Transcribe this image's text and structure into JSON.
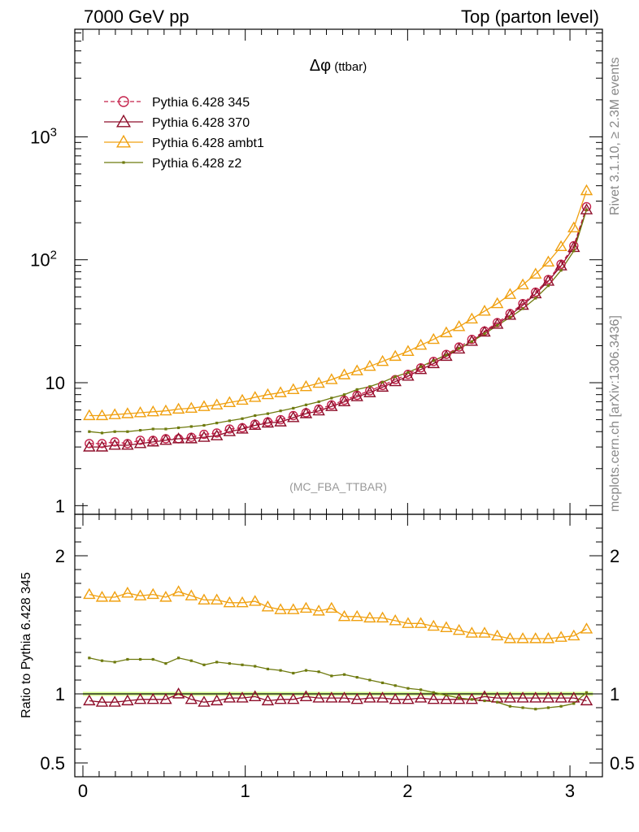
{
  "header": {
    "left": "7000 GeV pp",
    "right": "Top (parton level)"
  },
  "side_labels": {
    "rivet": "Rivet 3.1.10, ≥ 2.3M events",
    "mcplots": "mcplots.cern.ch [arXiv:1306.3436]"
  },
  "chart_data": {
    "type": "line",
    "title": "Δφ (ttbar)",
    "title_symbol": "Δφ",
    "title_suffix": " (ttbar)",
    "analysis_label": "(MC_FBA_TTBAR)",
    "xlim": [
      -0.05,
      3.2
    ],
    "upper": {
      "ylabel": "",
      "yscale": "log",
      "ylim": [
        0.85,
        7500
      ],
      "yticks": [
        {
          "value": 1,
          "label": "1"
        },
        {
          "value": 10,
          "label": "10"
        },
        {
          "value": 100,
          "label": "10",
          "exp": "2"
        },
        {
          "value": 1000,
          "label": "10",
          "exp": "3"
        }
      ]
    },
    "lower": {
      "ylabel": "Ratio to Pythia 6.428 345",
      "ylim": [
        0.4,
        2.3
      ],
      "yticks": [
        {
          "value": 0.5,
          "label": "0.5"
        },
        {
          "value": 1,
          "label": "1"
        },
        {
          "value": 2,
          "label": "2"
        }
      ]
    },
    "xticks": [
      {
        "value": 0,
        "label": "0"
      },
      {
        "value": 1,
        "label": "1"
      },
      {
        "value": 2,
        "label": "2"
      },
      {
        "value": 3,
        "label": "3"
      }
    ],
    "x": [
      0.0393,
      0.1178,
      0.1963,
      0.2749,
      0.3534,
      0.432,
      0.5105,
      0.589,
      0.6676,
      0.7461,
      0.8247,
      0.9032,
      0.9817,
      1.0603,
      1.1388,
      1.2174,
      1.2959,
      1.3744,
      1.453,
      1.5315,
      1.6101,
      1.6886,
      1.7671,
      1.8457,
      1.9242,
      2.0028,
      2.0813,
      2.1598,
      2.2384,
      2.3169,
      2.3955,
      2.474,
      2.5525,
      2.6311,
      2.7096,
      2.7882,
      2.8667,
      2.9452,
      3.0238,
      3.1023
    ],
    "legend": [
      {
        "name": "Pythia 6.428 345",
        "color": "#c4204a",
        "marker": "circle",
        "dashed": true
      },
      {
        "name": "Pythia 6.428 370",
        "color": "#8e0e2a",
        "marker": "triangle",
        "dashed": false
      },
      {
        "name": "Pythia 6.428 ambt1",
        "color": "#f0a010",
        "marker": "triangle",
        "dashed": false
      },
      {
        "name": "Pythia 6.428 z2",
        "color": "#6e7a0e",
        "marker": "dot",
        "dashed": false
      }
    ],
    "series": [
      {
        "name": "Pythia 6.428 345",
        "values": [
          3.2,
          3.2,
          3.3,
          3.2,
          3.4,
          3.4,
          3.5,
          3.5,
          3.6,
          3.8,
          3.9,
          4.2,
          4.3,
          4.6,
          4.8,
          5.0,
          5.4,
          5.7,
          6.1,
          6.6,
          7.2,
          7.9,
          8.6,
          9.5,
          10.6,
          11.7,
          13.2,
          14.9,
          17.0,
          19.5,
          22.5,
          26.3,
          30.8,
          36.5,
          44.0,
          54.5,
          69.0,
          92.0,
          130.0,
          270.0
        ]
      },
      {
        "name": "Pythia 6.428 370",
        "values": [
          3.0,
          3.0,
          3.1,
          3.1,
          3.2,
          3.3,
          3.4,
          3.5,
          3.5,
          3.6,
          3.7,
          4.0,
          4.2,
          4.5,
          4.7,
          4.8,
          5.2,
          5.6,
          5.9,
          6.4,
          7.0,
          7.7,
          8.3,
          9.2,
          10.2,
          11.3,
          12.8,
          14.3,
          16.4,
          18.8,
          21.7,
          25.8,
          29.9,
          35.4,
          42.7,
          52.9,
          67.0,
          89.2,
          126.0,
          255.0
        ]
      },
      {
        "name": "Pythia 6.428 ambt1",
        "values": [
          5.4,
          5.4,
          5.5,
          5.6,
          5.7,
          5.8,
          5.9,
          6.1,
          6.2,
          6.4,
          6.6,
          6.9,
          7.2,
          7.6,
          8.0,
          8.3,
          8.8,
          9.3,
          9.9,
          10.6,
          11.6,
          12.5,
          13.6,
          14.9,
          16.4,
          18.0,
          20.2,
          22.5,
          25.5,
          28.6,
          33.0,
          38.2,
          44.0,
          52.3,
          62.5,
          76.5,
          96.0,
          128.0,
          182.0,
          365.0
        ]
      },
      {
        "name": "Pythia 6.428 z2",
        "values": [
          4.0,
          3.9,
          4.0,
          4.0,
          4.1,
          4.2,
          4.2,
          4.3,
          4.4,
          4.5,
          4.7,
          4.9,
          5.1,
          5.4,
          5.6,
          5.9,
          6.2,
          6.6,
          7.0,
          7.5,
          8.0,
          8.8,
          9.3,
          10.1,
          11.2,
          12.1,
          13.5,
          15.1,
          16.8,
          19.0,
          21.6,
          25.0,
          29.2,
          34.0,
          40.0,
          48.7,
          61.5,
          82.0,
          118.0,
          255.0
        ]
      }
    ],
    "ratio_series": [
      {
        "name": "Pythia 6.428 345",
        "values": [
          1.0,
          1.0,
          1.0,
          1.0,
          1.0,
          1.0,
          1.0,
          1.0,
          1.0,
          1.0,
          1.0,
          1.0,
          1.0,
          1.0,
          1.0,
          1.0,
          1.0,
          1.0,
          1.0,
          1.0,
          1.0,
          1.0,
          1.0,
          1.0,
          1.0,
          1.0,
          1.0,
          1.0,
          1.0,
          1.0,
          1.0,
          1.0,
          1.0,
          1.0,
          1.0,
          1.0,
          1.0,
          1.0,
          1.0,
          1.0
        ]
      },
      {
        "name": "Pythia 6.428 370",
        "values": [
          0.95,
          0.94,
          0.94,
          0.95,
          0.96,
          0.96,
          0.96,
          1.0,
          0.96,
          0.94,
          0.95,
          0.97,
          0.97,
          0.98,
          0.95,
          0.96,
          0.96,
          0.98,
          0.97,
          0.97,
          0.97,
          0.96,
          0.97,
          0.97,
          0.96,
          0.96,
          0.97,
          0.96,
          0.96,
          0.96,
          0.96,
          0.98,
          0.97,
          0.97,
          0.97,
          0.97,
          0.97,
          0.97,
          0.97,
          0.95
        ]
      },
      {
        "name": "Pythia 6.428 ambt1",
        "values": [
          1.72,
          1.7,
          1.7,
          1.73,
          1.71,
          1.72,
          1.7,
          1.74,
          1.71,
          1.68,
          1.68,
          1.66,
          1.66,
          1.67,
          1.63,
          1.61,
          1.61,
          1.62,
          1.6,
          1.62,
          1.56,
          1.56,
          1.55,
          1.55,
          1.53,
          1.51,
          1.51,
          1.49,
          1.48,
          1.46,
          1.44,
          1.44,
          1.42,
          1.4,
          1.4,
          1.4,
          1.4,
          1.41,
          1.42,
          1.47
        ]
      },
      {
        "name": "Pythia 6.428 z2",
        "values": [
          1.26,
          1.24,
          1.23,
          1.25,
          1.25,
          1.25,
          1.22,
          1.26,
          1.24,
          1.21,
          1.23,
          1.22,
          1.21,
          1.2,
          1.18,
          1.17,
          1.15,
          1.17,
          1.16,
          1.13,
          1.14,
          1.12,
          1.1,
          1.08,
          1.06,
          1.04,
          1.03,
          1.01,
          0.99,
          0.97,
          0.96,
          0.95,
          0.94,
          0.91,
          0.9,
          0.89,
          0.9,
          0.91,
          0.93,
          1.01
        ]
      }
    ]
  }
}
